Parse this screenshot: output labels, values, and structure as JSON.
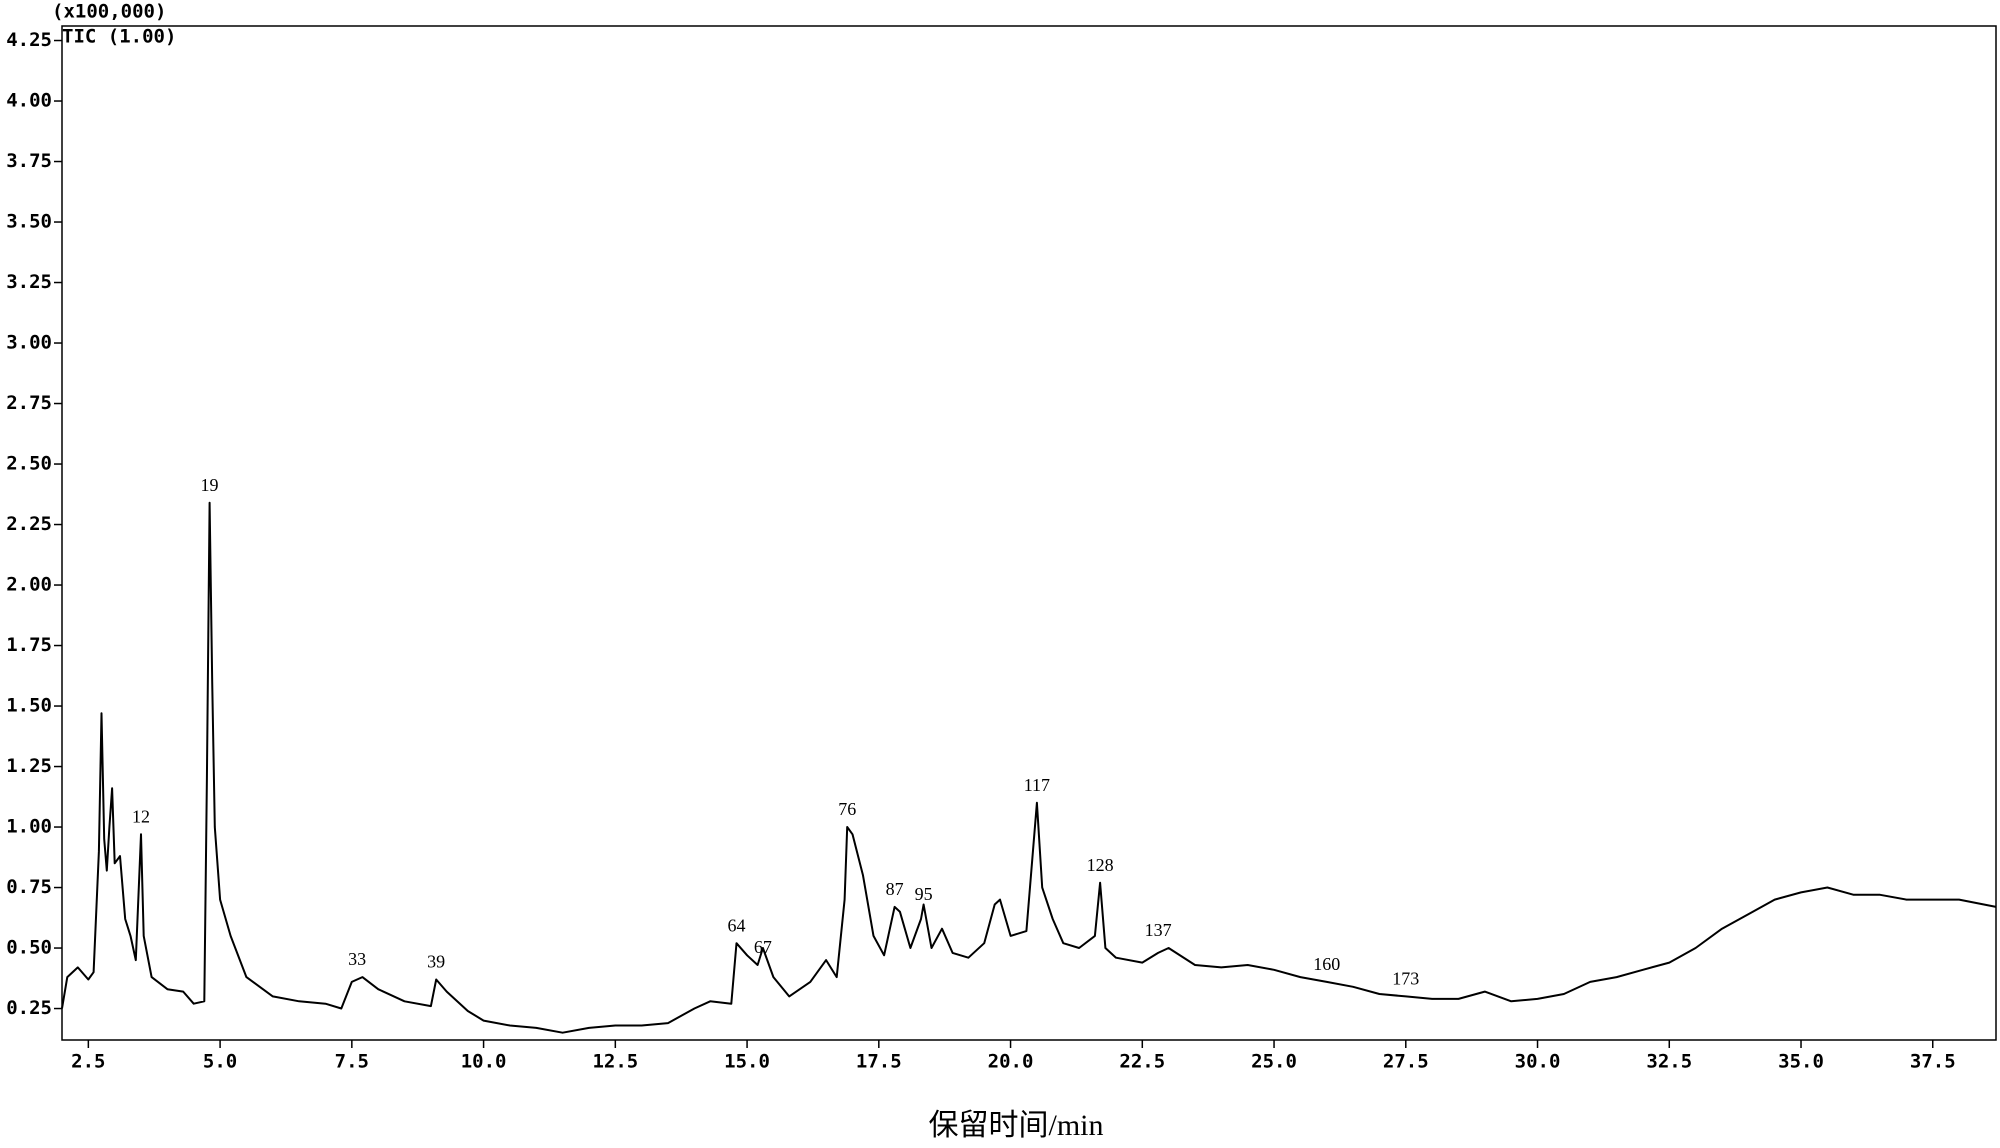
{
  "chart_data": {
    "type": "line",
    "y_unit": "(x100,000)",
    "trace_label": "TIC (1.00)",
    "x_label": "保留时间/min",
    "xlim": [
      2.0,
      38.7
    ],
    "ylim": [
      0.12,
      4.31
    ],
    "xticks": [
      {
        "value": 2.5,
        "label": "2.5"
      },
      {
        "value": 5,
        "label": "5.0"
      },
      7.5,
      {
        "value": 10,
        "label": "10.0"
      },
      12.5,
      {
        "value": 15,
        "label": "15.0"
      },
      17.5,
      {
        "value": 20,
        "label": "20.0"
      },
      22.5,
      {
        "value": 25,
        "label": "25.0"
      },
      27.5,
      {
        "value": 30,
        "label": "30.0"
      },
      32.5,
      {
        "value": 35,
        "label": "35.0"
      },
      37.5
    ],
    "yticks": [
      0.25,
      {
        "value": 0.5,
        "label": "0.50"
      },
      0.75,
      {
        "value": 1,
        "label": "1.00"
      },
      1.25,
      {
        "value": 1.5,
        "label": "1.50"
      },
      1.75,
      {
        "value": 2,
        "label": "2.00"
      },
      2.25,
      {
        "value": 2.5,
        "label": "2.50"
      },
      2.75,
      {
        "value": 3,
        "label": "3.00"
      },
      3.25,
      {
        "value": 3.5,
        "label": "3.50"
      },
      3.75,
      {
        "value": 4,
        "label": "4.00"
      },
      4.25
    ],
    "x": [
      2.0,
      2.1,
      2.3,
      2.5,
      2.6,
      2.7,
      2.75,
      2.8,
      2.85,
      2.9,
      2.95,
      3.0,
      3.1,
      3.2,
      3.3,
      3.4,
      3.5,
      3.55,
      3.7,
      4.0,
      4.3,
      4.5,
      4.7,
      4.75,
      4.8,
      4.85,
      4.9,
      5.0,
      5.2,
      5.5,
      6.0,
      6.5,
      7.0,
      7.3,
      7.5,
      7.7,
      8.0,
      8.5,
      9.0,
      9.1,
      9.3,
      9.7,
      10.0,
      10.5,
      11.0,
      11.5,
      12.0,
      12.5,
      13.0,
      13.5,
      14.0,
      14.3,
      14.7,
      14.8,
      15.0,
      15.2,
      15.3,
      15.5,
      15.8,
      16.2,
      16.5,
      16.7,
      16.85,
      16.9,
      17.0,
      17.2,
      17.4,
      17.6,
      17.8,
      17.9,
      18.1,
      18.3,
      18.35,
      18.5,
      18.7,
      18.9,
      19.2,
      19.5,
      19.7,
      19.8,
      20.0,
      20.3,
      20.5,
      20.6,
      20.8,
      21.0,
      21.3,
      21.6,
      21.7,
      21.8,
      22.0,
      22.5,
      22.8,
      23.0,
      23.5,
      24.0,
      24.5,
      25.0,
      25.5,
      26.0,
      26.5,
      27.0,
      27.5,
      28.0,
      28.5,
      29.0,
      29.5,
      30.0,
      30.5,
      31.0,
      31.5,
      32.0,
      32.5,
      33.0,
      33.5,
      34.0,
      34.5,
      35.0,
      35.5,
      36.0,
      36.5,
      37.0,
      37.5,
      38.0,
      38.7
    ],
    "series": [
      {
        "color": "#000000",
        "values": [
          0.25,
          0.38,
          0.42,
          0.37,
          0.4,
          0.9,
          1.47,
          0.95,
          0.82,
          1.0,
          1.16,
          0.85,
          0.88,
          0.62,
          0.55,
          0.45,
          0.97,
          0.55,
          0.38,
          0.33,
          0.32,
          0.27,
          0.28,
          1.2,
          2.34,
          1.6,
          1.0,
          0.7,
          0.55,
          0.38,
          0.3,
          0.28,
          0.27,
          0.25,
          0.36,
          0.38,
          0.33,
          0.28,
          0.26,
          0.37,
          0.32,
          0.24,
          0.2,
          0.18,
          0.17,
          0.15,
          0.17,
          0.18,
          0.18,
          0.19,
          0.25,
          0.28,
          0.27,
          0.52,
          0.47,
          0.43,
          0.5,
          0.38,
          0.3,
          0.36,
          0.45,
          0.38,
          0.7,
          1.0,
          0.97,
          0.8,
          0.55,
          0.47,
          0.67,
          0.65,
          0.5,
          0.62,
          0.68,
          0.5,
          0.58,
          0.48,
          0.46,
          0.52,
          0.68,
          0.7,
          0.55,
          0.57,
          1.1,
          0.75,
          0.62,
          0.52,
          0.5,
          0.55,
          0.77,
          0.5,
          0.46,
          0.44,
          0.48,
          0.5,
          0.43,
          0.42,
          0.43,
          0.41,
          0.38,
          0.36,
          0.34,
          0.31,
          0.3,
          0.29,
          0.29,
          0.32,
          0.28,
          0.29,
          0.31,
          0.36,
          0.38,
          0.41,
          0.44,
          0.5,
          0.58,
          0.64,
          0.7,
          0.73,
          0.75,
          0.72,
          0.72,
          0.7,
          0.7,
          0.7,
          0.67
        ]
      }
    ],
    "annotations": [
      {
        "text": "12",
        "x": 3.5,
        "y": 0.97
      },
      {
        "text": "19",
        "x": 4.8,
        "y": 2.34
      },
      {
        "text": "33",
        "x": 7.6,
        "y": 0.38
      },
      {
        "text": "39",
        "x": 9.1,
        "y": 0.37
      },
      {
        "text": "64",
        "x": 14.8,
        "y": 0.52
      },
      {
        "text": "67",
        "x": 15.3,
        "y": 0.43
      },
      {
        "text": "76",
        "x": 16.9,
        "y": 1.0
      },
      {
        "text": "87",
        "x": 17.8,
        "y": 0.67
      },
      {
        "text": "95",
        "x": 18.35,
        "y": 0.65
      },
      {
        "text": "117",
        "x": 20.5,
        "y": 1.1
      },
      {
        "text": "128",
        "x": 21.7,
        "y": 0.77
      },
      {
        "text": "137",
        "x": 22.8,
        "y": 0.5
      },
      {
        "text": "160",
        "x": 26.0,
        "y": 0.36
      },
      {
        "text": "173",
        "x": 27.5,
        "y": 0.3
      }
    ]
  }
}
